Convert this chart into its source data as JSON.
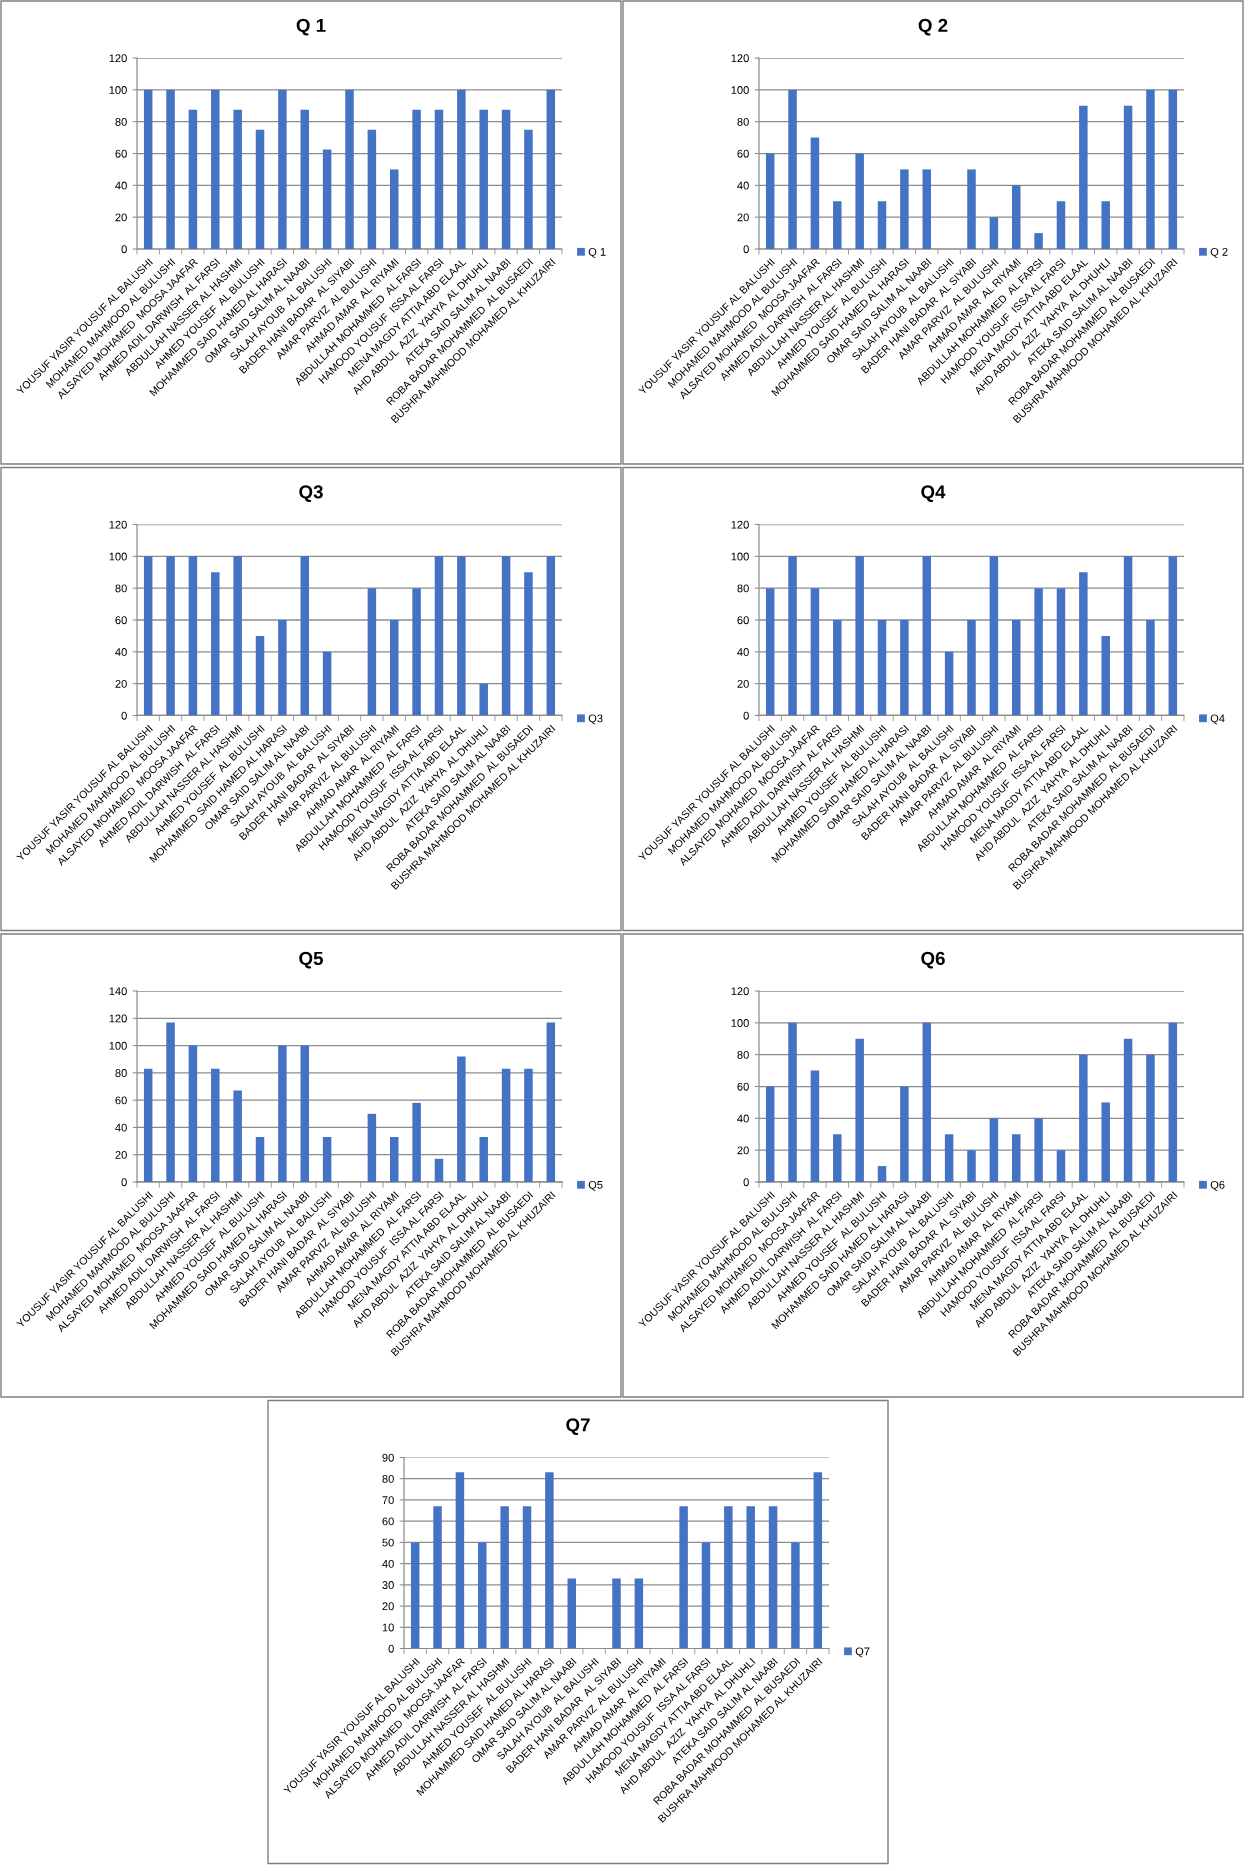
{
  "chart_data": [
    {
      "type": "bar",
      "title": "Q 1",
      "categories": [
        "YOUSUF YASIR YOUSUF AL BALUSHI",
        "MOHAMED MAHMOOD AL BULUSHI",
        "ALSAYED MOHAMED  MOOSA JAAFAR",
        "AHMED ADIL DARWISH  AL FARSI",
        "ABDULLAH NASSER AL HASHMI",
        "AHMED YOUSEF  AL BULUSHI",
        "MOHAMMED SAID HAMED AL HARASI",
        "OMAR SAID SALIM AL NAABI",
        "SALAH AYOUB  AL BALUSHI",
        "BADER HANI BADAR  AL SIYABI",
        "AMAR PARVIZ  AL BULUSHI",
        "AHMAD AMAR  AL RIYAMI",
        "ABDULLAH MOHAMMED  AL FARSI",
        "HAMOOD YOUSUF  ISSA AL FARSI",
        "MENA MAGDY ATTIA ABD ELAAL",
        "AHD ABDUL  AZIZ  YAHYA  AL DHUHLI",
        "ATEKA SAID SALIM AL NAABI",
        "ROBA BADAR MOHAMMED  AL BUSAEDI",
        "BUSHRA MAHMOOD MOHAMED AL KHUZAIRI"
      ],
      "series": [
        {
          "name": "Q 1",
          "color": "#4472c4",
          "values": [
            100,
            100,
            87.5,
            100,
            87.5,
            75,
            100,
            87.5,
            62.5,
            100,
            75,
            50,
            87.5,
            87.5,
            100,
            87.5,
            87.5,
            75,
            100
          ]
        }
      ],
      "ylim": [
        0,
        120
      ],
      "yticks": [
        0,
        20,
        40,
        60,
        80,
        100,
        120
      ],
      "grid": "y",
      "legend": "right"
    },
    {
      "type": "bar",
      "title": "Q 2",
      "categories": [
        "YOUSUF YASIR YOUSUF AL BALUSHI",
        "MOHAMED MAHMOOD AL BULUSHI",
        "ALSAYED MOHAMED  MOOSA JAAFAR",
        "AHMED ADIL DARWISH  AL FARSI",
        "ABDULLAH NASSER AL HASHMI",
        "AHMED YOUSEF  AL BULUSHI",
        "MOHAMMED SAID HAMED AL HARASI",
        "OMAR SAID SALIM AL NAABI",
        "SALAH AYOUB  AL BALUSHI",
        "BADER HANI BADAR  AL SIYABI",
        "AMAR PARVIZ  AL BULUSHI",
        "AHMAD AMAR  AL RIYAMI",
        "ABDULLAH MOHAMMED  AL FARSI",
        "HAMOOD YOUSUF  ISSA AL FARSI",
        "MENA MAGDY ATTIA ABD ELAAL",
        "AHD ABDUL  AZIZ  YAHYA  AL DHUHLI",
        "ATEKA SAID SALIM AL NAABI",
        "ROBA BADAR MOHAMMED  AL BUSAEDI",
        "BUSHRA MAHMOOD MOHAMED AL KHUZAIRI"
      ],
      "series": [
        {
          "name": "Q 2",
          "color": "#4472c4",
          "values": [
            60,
            100,
            70,
            30,
            60,
            30,
            50,
            50,
            null,
            50,
            20,
            40,
            10,
            30,
            90,
            30,
            90,
            100,
            100
          ]
        }
      ],
      "ylim": [
        0,
        120
      ],
      "yticks": [
        0,
        20,
        40,
        60,
        80,
        100,
        120
      ],
      "grid": "y",
      "legend": "right"
    },
    {
      "type": "bar",
      "title": "Q3",
      "categories": [
        "YOUSUF YASIR YOUSUF AL BALUSHI",
        "MOHAMED MAHMOOD AL BULUSHI",
        "ALSAYED MOHAMED  MOOSA JAAFAR",
        "AHMED ADIL DARWISH  AL FARSI",
        "ABDULLAH NASSER AL HASHMI",
        "AHMED YOUSEF  AL BULUSHI",
        "MOHAMMED SAID HAMED AL HARASI",
        "OMAR SAID SALIM AL NAABI",
        "SALAH AYOUB  AL BALUSHI",
        "BADER HANI BADAR  AL SIYABI",
        "AMAR PARVIZ  AL BULUSHI",
        "AHMAD AMAR  AL RIYAMI",
        "ABDULLAH MOHAMMED  AL FARSI",
        "HAMOOD YOUSUF  ISSA AL FARSI",
        "MENA MAGDY ATTIA ABD ELAAL",
        "AHD ABDUL  AZIZ  YAHYA  AL DHUHLI",
        "ATEKA SAID SALIM AL NAABI",
        "ROBA BADAR MOHAMMED  AL BUSAEDI",
        "BUSHRA MAHMOOD MOHAMED AL KHUZAIRI"
      ],
      "series": [
        {
          "name": "Q3",
          "color": "#4472c4",
          "values": [
            100,
            100,
            100,
            90,
            100,
            50,
            60,
            100,
            40,
            null,
            80,
            60,
            80,
            100,
            100,
            20,
            100,
            90,
            100
          ]
        }
      ],
      "ylim": [
        0,
        120
      ],
      "yticks": [
        0,
        20,
        40,
        60,
        80,
        100,
        120
      ],
      "grid": "y",
      "legend": "right"
    },
    {
      "type": "bar",
      "title": "Q4",
      "categories": [
        "YOUSUF YASIR YOUSUF AL BALUSHI",
        "MOHAMED MAHMOOD AL BULUSHI",
        "ALSAYED MOHAMED  MOOSA JAAFAR",
        "AHMED ADIL DARWISH  AL FARSI",
        "ABDULLAH NASSER AL HASHMI",
        "AHMED YOUSEF  AL BULUSHI",
        "MOHAMMED SAID HAMED AL HARASI",
        "OMAR SAID SALIM AL NAABI",
        "SALAH AYOUB  AL BALUSHI",
        "BADER HANI BADAR  AL SIYABI",
        "AMAR PARVIZ  AL BULUSHI",
        "AHMAD AMAR  AL RIYAMI",
        "ABDULLAH MOHAMMED  AL FARSI",
        "HAMOOD YOUSUF  ISSA AL FARSI",
        "MENA MAGDY ATTIA ABD ELAAL",
        "AHD ABDUL  AZIZ  YAHYA  AL DHUHLI",
        "ATEKA SAID SALIM AL NAABI",
        "ROBA BADAR MOHAMMED  AL BUSAEDI",
        "BUSHRA MAHMOOD MOHAMED AL KHUZAIRI"
      ],
      "series": [
        {
          "name": "Q4",
          "color": "#4472c4",
          "values": [
            80,
            100,
            80,
            60,
            100,
            60,
            60,
            100,
            40,
            60,
            100,
            60,
            80,
            80,
            90,
            50,
            100,
            60,
            100
          ]
        }
      ],
      "ylim": [
        0,
        120
      ],
      "yticks": [
        0,
        20,
        40,
        60,
        80,
        100,
        120
      ],
      "grid": "y",
      "legend": "right"
    },
    {
      "type": "bar",
      "title": "Q5",
      "categories": [
        "YOUSUF YASIR YOUSUF AL BALUSHI",
        "MOHAMED MAHMOOD AL BULUSHI",
        "ALSAYED MOHAMED  MOOSA JAAFAR",
        "AHMED ADIL DARWISH  AL FARSI",
        "ABDULLAH NASSER AL HASHMI",
        "AHMED YOUSEF  AL BULUSHI",
        "MOHAMMED SAID HAMED AL HARASI",
        "OMAR SAID SALIM AL NAABI",
        "SALAH AYOUB  AL BALUSHI",
        "BADER HANI BADAR  AL SIYABI",
        "AMAR PARVIZ  AL BULUSHI",
        "AHMAD AMAR  AL RIYAMI",
        "ABDULLAH MOHAMMED  AL FARSI",
        "HAMOOD YOUSUF  ISSA AL FARSI",
        "MENA MAGDY ATTIA ABD ELAAL",
        "AHD ABDUL  AZIZ  YAHYA  AL DHUHLI",
        "ATEKA SAID SALIM AL NAABI",
        "ROBA BADAR MOHAMMED  AL BUSAEDI",
        "BUSHRA MAHMOOD MOHAMED AL KHUZAIRI"
      ],
      "series": [
        {
          "name": "Q5",
          "color": "#4472c4",
          "values": [
            83,
            117,
            100,
            83,
            67,
            33,
            100,
            100,
            33,
            null,
            50,
            33,
            58,
            17,
            92,
            33,
            83,
            83,
            117
          ]
        }
      ],
      "ylim": [
        0,
        140
      ],
      "yticks": [
        0,
        20,
        40,
        60,
        80,
        100,
        120,
        140
      ],
      "grid": "y",
      "legend": "right"
    },
    {
      "type": "bar",
      "title": "Q6",
      "categories": [
        "YOUSUF YASIR YOUSUF AL BALUSHI",
        "MOHAMED MAHMOOD AL BULUSHI",
        "ALSAYED MOHAMED  MOOSA JAAFAR",
        "AHMED ADIL DARWISH  AL FARSI",
        "ABDULLAH NASSER AL HASHMI",
        "AHMED YOUSEF  AL BULUSHI",
        "MOHAMMED SAID HAMED AL HARASI",
        "OMAR SAID SALIM AL NAABI",
        "SALAH AYOUB  AL BALUSHI",
        "BADER HANI BADAR  AL SIYABI",
        "AMAR PARVIZ  AL BULUSHI",
        "AHMAD AMAR  AL RIYAMI",
        "ABDULLAH MOHAMMED  AL FARSI",
        "HAMOOD YOUSUF  ISSA AL FARSI",
        "MENA MAGDY ATTIA ABD ELAAL",
        "AHD ABDUL  AZIZ  YAHYA  AL DHUHLI",
        "ATEKA SAID SALIM AL NAABI",
        "ROBA BADAR MOHAMMED  AL BUSAEDI",
        "BUSHRA MAHMOOD MOHAMED AL KHUZAIRI"
      ],
      "series": [
        {
          "name": "Q6",
          "color": "#4472c4",
          "values": [
            60,
            100,
            70,
            30,
            90,
            10,
            60,
            100,
            30,
            20,
            40,
            30,
            40,
            20,
            80,
            50,
            90,
            80,
            100
          ]
        }
      ],
      "ylim": [
        0,
        120
      ],
      "yticks": [
        0,
        20,
        40,
        60,
        80,
        100,
        120
      ],
      "grid": "y",
      "legend": "right"
    },
    {
      "type": "bar",
      "title": "Q7",
      "categories": [
        "YOUSUF YASIR YOUSUF AL BALUSHI",
        "MOHAMED MAHMOOD AL BULUSHI",
        "ALSAYED MOHAMED  MOOSA JAAFAR",
        "AHMED ADIL DARWISH  AL FARSI",
        "ABDULLAH NASSER AL HASHMI",
        "AHMED YOUSEF  AL BULUSHI",
        "MOHAMMED SAID HAMED AL HARASI",
        "OMAR SAID SALIM AL NAABI",
        "SALAH AYOUB  AL BALUSHI",
        "BADER HANI BADAR  AL SIYABI",
        "AMAR PARVIZ  AL BULUSHI",
        "AHMAD AMAR  AL RIYAMI",
        "ABDULLAH MOHAMMED  AL FARSI",
        "HAMOOD YOUSUF  ISSA AL FARSI",
        "MENA MAGDY ATTIA ABD ELAAL",
        "AHD ABDUL  AZIZ  YAHYA  AL DHUHLI",
        "ATEKA SAID SALIM AL NAABI",
        "ROBA BADAR MOHAMMED  AL BUSAEDI",
        "BUSHRA MAHMOOD MOHAMED AL KHUZAIRI"
      ],
      "series": [
        {
          "name": "Q7",
          "color": "#4472c4",
          "values": [
            50,
            67,
            83,
            50,
            67,
            67,
            83,
            33,
            null,
            33,
            33,
            null,
            67,
            50,
            67,
            67,
            67,
            50,
            83
          ]
        }
      ],
      "ylim": [
        0,
        90
      ],
      "yticks": [
        0,
        10,
        20,
        30,
        40,
        50,
        60,
        70,
        80,
        90
      ],
      "grid": "y",
      "legend": "right"
    }
  ]
}
